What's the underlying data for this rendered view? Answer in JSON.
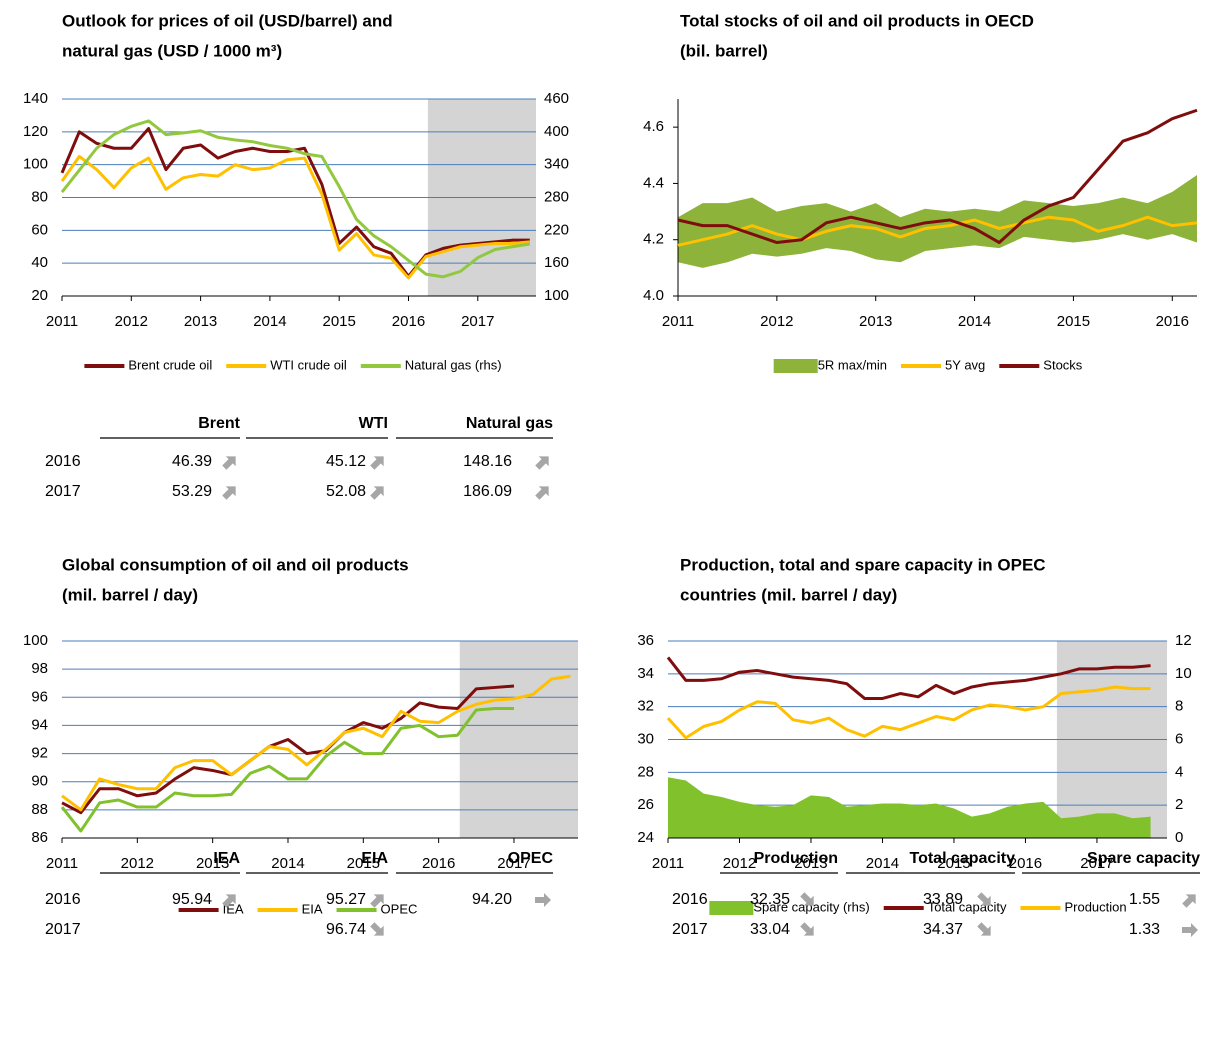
{
  "chart_data": [
    {
      "type": "line",
      "title_lines": [
        "Outlook for prices of oil (USD/barrel) and",
        "natural gas (USD / 1000 m³)"
      ],
      "x": [
        2011,
        2011.25,
        2011.5,
        2011.75,
        2012,
        2012.25,
        2012.5,
        2012.75,
        2013,
        2013.25,
        2013.5,
        2013.75,
        2014,
        2014.25,
        2014.5,
        2014.75,
        2015,
        2015.25,
        2015.5,
        2015.75,
        2016,
        2016.25,
        2016.5,
        2016.75,
        2017,
        2017.25,
        2017.5,
        2017.75
      ],
      "xlim": [
        2011,
        2017.84
      ],
      "xticks": [
        2011,
        2012,
        2013,
        2014,
        2015,
        2016,
        2017
      ],
      "ylim": [
        20,
        140
      ],
      "yticks": [
        20,
        40,
        60,
        80,
        100,
        120,
        140
      ],
      "y2lim": [
        100,
        460
      ],
      "y2ticks": [
        100,
        160,
        220,
        280,
        340,
        400,
        460
      ],
      "grid": true,
      "shade_from": 2016.28,
      "shade_color": "#d4d4d4",
      "grid_color": "#4a7ebb",
      "series": [
        {
          "name": "Brent crude oil",
          "type": "line",
          "color": "#7f0d0d",
          "values": [
            95,
            120,
            113,
            110,
            110,
            122,
            97,
            110,
            112,
            104,
            108,
            110,
            108,
            108,
            110,
            88,
            52,
            62,
            50,
            46,
            32,
            45,
            49,
            51,
            52,
            53,
            54,
            54
          ]
        },
        {
          "name": "WTI crude oil",
          "type": "line",
          "color": "#ffc000",
          "values": [
            90,
            105,
            97,
            86,
            98,
            104,
            85,
            92,
            94,
            93,
            100,
            97,
            98,
            103,
            104,
            82,
            48,
            58,
            45,
            43,
            31,
            44,
            47,
            50,
            51,
            52,
            52,
            53
          ]
        },
        {
          "name": "Natural gas (rhs)",
          "type": "line",
          "axis": "y2",
          "color": "#92c83e",
          "values": [
            290,
            330,
            370,
            395,
            410,
            420,
            395,
            398,
            402,
            390,
            385,
            382,
            375,
            370,
            360,
            355,
            300,
            240,
            210,
            190,
            165,
            140,
            135,
            145,
            170,
            185,
            190,
            195
          ]
        }
      ]
    },
    {
      "type": "line",
      "title_lines": [
        "Total stocks of oil and oil products in OECD",
        "(bil. barrel)"
      ],
      "x": [
        2011,
        2011.25,
        2011.5,
        2011.75,
        2012,
        2012.25,
        2012.5,
        2012.75,
        2013,
        2013.25,
        2013.5,
        2013.75,
        2014,
        2014.25,
        2014.5,
        2014.75,
        2015,
        2015.25,
        2015.5,
        2015.75,
        2016,
        2016.25
      ],
      "xlim": [
        2011,
        2016.25
      ],
      "xticks": [
        2011,
        2012,
        2013,
        2014,
        2015,
        2016
      ],
      "ylim": [
        4.0,
        4.7
      ],
      "yticks": [
        {
          "value": 4.0,
          "label": "4.0"
        },
        4.2,
        4.4,
        4.6
      ],
      "grid": false,
      "series": [
        {
          "name": "5R max/min",
          "type": "band",
          "color": "#8db33a",
          "upper": [
            4.28,
            4.33,
            4.33,
            4.35,
            4.3,
            4.32,
            4.33,
            4.3,
            4.33,
            4.28,
            4.31,
            4.3,
            4.31,
            4.3,
            4.34,
            4.33,
            4.32,
            4.33,
            4.35,
            4.33,
            4.37,
            4.43
          ],
          "lower": [
            4.12,
            4.1,
            4.12,
            4.15,
            4.14,
            4.15,
            4.17,
            4.16,
            4.13,
            4.12,
            4.16,
            4.17,
            4.18,
            4.17,
            4.21,
            4.2,
            4.19,
            4.2,
            4.22,
            4.2,
            4.22,
            4.19
          ]
        },
        {
          "name": "5Y avg",
          "type": "line",
          "color": "#ffc000",
          "values": [
            4.18,
            4.2,
            4.22,
            4.25,
            4.22,
            4.2,
            4.23,
            4.25,
            4.24,
            4.21,
            4.24,
            4.25,
            4.27,
            4.24,
            4.26,
            4.28,
            4.27,
            4.23,
            4.25,
            4.28,
            4.25,
            4.26
          ]
        },
        {
          "name": "Stocks",
          "type": "line",
          "color": "#7f0d0d",
          "values": [
            4.27,
            4.25,
            4.25,
            4.22,
            4.19,
            4.2,
            4.26,
            4.28,
            4.26,
            4.24,
            4.26,
            4.27,
            4.24,
            4.19,
            4.27,
            4.32,
            4.35,
            4.45,
            4.55,
            4.58,
            4.63,
            4.66
          ]
        }
      ]
    },
    {
      "type": "line",
      "title_lines": [
        "Global consumption of oil and oil products",
        "(mil. barrel / day)"
      ],
      "x": [
        2011,
        2011.25,
        2011.5,
        2011.75,
        2012,
        2012.25,
        2012.5,
        2012.75,
        2013,
        2013.25,
        2013.5,
        2013.75,
        2014,
        2014.25,
        2014.5,
        2014.75,
        2015,
        2015.25,
        2015.5,
        2015.75,
        2016,
        2016.25,
        2016.5,
        2016.75,
        2017,
        2017.25,
        2017.5,
        2017.75
      ],
      "xlim": [
        2011,
        2017.85
      ],
      "xticks": [
        2011,
        2012,
        2013,
        2014,
        2015,
        2016,
        2017
      ],
      "ylim": [
        86,
        100
      ],
      "yticks": [
        86,
        88,
        90,
        92,
        94,
        96,
        98,
        100
      ],
      "grid": true,
      "shade_from": 2016.28,
      "shade_color": "#d4d4d4",
      "grid_color": "#4a7ebb",
      "series": [
        {
          "name": "IEA",
          "type": "line",
          "color": "#7f0d0d",
          "values": [
            88.5,
            87.8,
            89.5,
            89.5,
            89,
            89.2,
            90.2,
            91,
            90.8,
            90.5,
            91.5,
            92.5,
            93,
            92,
            92.2,
            93.5,
            94.2,
            93.8,
            94.5,
            95.6,
            95.3,
            95.2,
            96.6,
            96.7,
            96.8,
            null,
            null,
            null
          ]
        },
        {
          "name": "EIA",
          "type": "line",
          "color": "#ffc000",
          "values": [
            89,
            88,
            90.2,
            89.8,
            89.5,
            89.5,
            91,
            91.5,
            91.5,
            90.5,
            91.5,
            92.5,
            92.3,
            91.2,
            92.3,
            93.5,
            93.8,
            93.2,
            95,
            94.3,
            94.2,
            95,
            95.5,
            95.8,
            95.9,
            96.2,
            97.3,
            97.5
          ]
        },
        {
          "name": "OPEC",
          "type": "line",
          "color": "#80c12c",
          "values": [
            88.2,
            86.5,
            88.5,
            88.7,
            88.2,
            88.2,
            89.2,
            89,
            89,
            89.1,
            90.6,
            91.1,
            90.2,
            90.2,
            91.8,
            92.8,
            92,
            92,
            93.8,
            94,
            93.2,
            93.3,
            95.1,
            95.2,
            95.2,
            null,
            null,
            null
          ]
        }
      ]
    },
    {
      "type": "line",
      "title_lines": [
        "Production, total and spare capacity in OPEC",
        "countries (mil. barrel / day)"
      ],
      "x": [
        2011,
        2011.25,
        2011.5,
        2011.75,
        2012,
        2012.25,
        2012.5,
        2012.75,
        2013,
        2013.25,
        2013.5,
        2013.75,
        2014,
        2014.25,
        2014.5,
        2014.75,
        2015,
        2015.25,
        2015.5,
        2015.75,
        2016,
        2016.25,
        2016.5,
        2016.75,
        2017,
        2017.25,
        2017.5,
        2017.75
      ],
      "xlim": [
        2011,
        2017.98
      ],
      "xticks": [
        2011,
        2012,
        2013,
        2014,
        2015,
        2016,
        2017
      ],
      "ylim": [
        24,
        36
      ],
      "yticks": [
        24,
        26,
        28,
        30,
        32,
        34,
        36
      ],
      "y2lim": [
        0,
        12
      ],
      "y2ticks": [
        0,
        2,
        4,
        6,
        8,
        10,
        12
      ],
      "grid": true,
      "shade_from": 2016.44,
      "shade_color": "#d4d4d4",
      "grid_color": "#4a7ebb",
      "series": [
        {
          "name": "Spare capacity (rhs)",
          "type": "area",
          "axis": "y2",
          "color": "#80c12c",
          "values": [
            3.7,
            3.5,
            2.7,
            2.5,
            2.2,
            2,
            1.9,
            2,
            2.6,
            2.5,
            1.9,
            2,
            2.1,
            2.1,
            2,
            2.1,
            1.8,
            1.3,
            1.5,
            1.9,
            2.1,
            2.2,
            1.2,
            1.3,
            1.5,
            1.5,
            1.2,
            1.3
          ]
        },
        {
          "name": "Total capacity",
          "type": "line",
          "color": "#7f0d0d",
          "values": [
            35,
            33.6,
            33.6,
            33.7,
            34.1,
            34.2,
            34,
            33.8,
            33.7,
            33.6,
            33.4,
            32.5,
            32.5,
            32.8,
            32.6,
            33.3,
            32.8,
            33.2,
            33.4,
            33.5,
            33.6,
            33.8,
            34,
            34.3,
            34.3,
            34.4,
            34.4,
            34.5
          ]
        },
        {
          "name": "Production",
          "type": "line",
          "color": "#ffc000",
          "values": [
            31.3,
            30.1,
            30.8,
            31.1,
            31.8,
            32.3,
            32.2,
            31.2,
            31,
            31.3,
            30.6,
            30.2,
            30.8,
            30.6,
            31,
            31.4,
            31.2,
            31.8,
            32.1,
            32,
            31.8,
            32,
            32.8,
            32.9,
            33,
            33.2,
            33.1,
            33.1
          ]
        }
      ]
    }
  ],
  "tables": [
    {
      "columns": [
        "Brent",
        "WTI",
        "Natural gas"
      ],
      "rows": [
        {
          "label": "2016",
          "cells": [
            {
              "value": "46.39",
              "trend": "up"
            },
            {
              "value": "45.12",
              "trend": "up"
            },
            {
              "value": "148.16",
              "trend": "up"
            }
          ]
        },
        {
          "label": "2017",
          "cells": [
            {
              "value": "53.29",
              "trend": "up"
            },
            {
              "value": "52.08",
              "trend": "up"
            },
            {
              "value": "186.09",
              "trend": "up"
            }
          ]
        }
      ]
    },
    {
      "columns": [
        "IEA",
        "EIA",
        "OPEC"
      ],
      "rows": [
        {
          "label": "2016",
          "cells": [
            {
              "value": "95.94",
              "trend": "up"
            },
            {
              "value": "95.27",
              "trend": "up"
            },
            {
              "value": "94.20",
              "trend": "flat"
            }
          ]
        },
        {
          "label": "2017",
          "cells": [
            null,
            {
              "value": "96.74",
              "trend": "down"
            },
            null
          ]
        }
      ]
    },
    {
      "columns": [
        "Production",
        "Total capacity",
        "Spare capacity"
      ],
      "rows": [
        {
          "label": "2016",
          "cells": [
            {
              "value": "32.35",
              "trend": "down"
            },
            {
              "value": "33.89",
              "trend": "down"
            },
            {
              "value": "1.55",
              "trend": "up"
            }
          ]
        },
        {
          "label": "2017",
          "cells": [
            {
              "value": "33.04",
              "trend": "down"
            },
            {
              "value": "34.37",
              "trend": "down"
            },
            {
              "value": "1.33",
              "trend": "flat"
            }
          ]
        }
      ]
    }
  ]
}
